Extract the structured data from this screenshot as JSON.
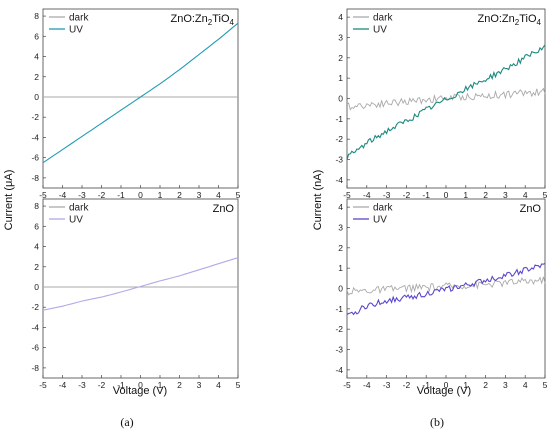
{
  "figure": {
    "label_a": "(a)",
    "label_b": "(b)",
    "ylabel_a": "Current (μA)",
    "ylabel_b": "Current (nA)",
    "xlabel": "Voltage (V)",
    "legend_dark": "dark",
    "legend_uv": "UV",
    "title_top_prefix": "ZnO:Zn",
    "title_top_sub1": "2",
    "title_top_mid": "TiO",
    "title_top_sub2": "4",
    "title_bottom": "ZnO"
  },
  "colors": {
    "dark": "#aaaaaa",
    "uv_znzn": "#1f9bb3",
    "uv_zno_a": "#b5a8e8",
    "uv_znzn_b": "#1c8a80",
    "uv_zno_b": "#5a48cc",
    "frame": "#444444"
  },
  "chart_data": [
    {
      "id": "a-top",
      "type": "line",
      "panel": "(a)",
      "title": "ZnO:Zn2TiO4",
      "xlabel": "Voltage (V)",
      "ylabel": "Current (μA)",
      "xlim": [
        -5,
        5
      ],
      "ylim": [
        -9,
        8.7
      ],
      "xticks": [
        -5,
        -4,
        -3,
        -2,
        -1,
        0,
        1,
        2,
        3,
        4,
        5
      ],
      "yticks": [
        -8,
        -6,
        -4,
        -2,
        0,
        2,
        4,
        6,
        8
      ],
      "legend": "top-left",
      "grid": false,
      "series": [
        {
          "name": "dark",
          "x": [
            -5,
            5
          ],
          "y": [
            0,
            0
          ]
        },
        {
          "name": "UV",
          "x": [
            -5,
            -4,
            -3,
            -2,
            -1,
            0,
            1,
            2,
            3,
            4,
            5
          ],
          "y": [
            -6.5,
            -5.2,
            -3.9,
            -2.6,
            -1.3,
            0,
            1.3,
            2.7,
            4.2,
            5.7,
            7.3
          ]
        }
      ]
    },
    {
      "id": "a-bottom",
      "type": "line",
      "panel": "(a)",
      "title": "ZnO",
      "xlabel": "Voltage (V)",
      "ylabel": "Current (μA)",
      "xlim": [
        -5,
        5
      ],
      "ylim": [
        -9,
        8.7
      ],
      "xticks": [
        -5,
        -4,
        -3,
        -2,
        -1,
        0,
        1,
        2,
        3,
        4,
        5
      ],
      "yticks": [
        -8,
        -6,
        -4,
        -2,
        0,
        2,
        4,
        6,
        8
      ],
      "legend": "top-left",
      "grid": false,
      "series": [
        {
          "name": "dark",
          "x": [
            -5,
            5
          ],
          "y": [
            0,
            0
          ]
        },
        {
          "name": "UV",
          "x": [
            -5,
            -4,
            -3,
            -2,
            -1,
            0,
            1,
            2,
            3,
            4,
            5
          ],
          "y": [
            -2.3,
            -1.9,
            -1.4,
            -1.0,
            -0.5,
            0.05,
            0.6,
            1.1,
            1.7,
            2.3,
            2.9
          ]
        }
      ]
    },
    {
      "id": "b-top",
      "type": "line",
      "panel": "(b)",
      "title": "ZnO:Zn2TiO4",
      "xlabel": "Voltage (V)",
      "ylabel": "Current (nA)",
      "xlim": [
        -5,
        5
      ],
      "ylim": [
        -4.4,
        4.4
      ],
      "xticks": [
        -5,
        -4,
        -3,
        -2,
        -1,
        0,
        1,
        2,
        3,
        4,
        5
      ],
      "yticks": [
        -4,
        -3,
        -2,
        -1,
        0,
        1,
        2,
        3,
        4
      ],
      "legend": "top-left",
      "grid": false,
      "series": [
        {
          "name": "dark",
          "x": [
            -5,
            -4,
            -3,
            -2,
            -1,
            0,
            1,
            2,
            3,
            4,
            5
          ],
          "y": [
            -0.4,
            -0.3,
            -0.22,
            -0.15,
            -0.05,
            0.02,
            0.08,
            0.13,
            0.2,
            0.28,
            0.32
          ]
        },
        {
          "name": "UV",
          "x": [
            -5,
            -4,
            -3,
            -2,
            -1,
            0,
            1,
            2,
            3,
            4,
            5
          ],
          "y": [
            -2.9,
            -2.2,
            -1.6,
            -1.1,
            -0.55,
            -0.05,
            0.45,
            0.95,
            1.45,
            2.0,
            2.5
          ]
        }
      ]
    },
    {
      "id": "b-bottom",
      "type": "line",
      "panel": "(b)",
      "title": "ZnO",
      "xlabel": "Voltage (V)",
      "ylabel": "Current (nA)",
      "xlim": [
        -5,
        5
      ],
      "ylim": [
        -4.4,
        4.4
      ],
      "xticks": [
        -5,
        -4,
        -3,
        -2,
        -1,
        0,
        1,
        2,
        3,
        4,
        5
      ],
      "yticks": [
        -4,
        -3,
        -2,
        -1,
        0,
        1,
        2,
        3,
        4
      ],
      "legend": "top-left",
      "grid": false,
      "series": [
        {
          "name": "dark",
          "x": [
            -5,
            -4,
            -3,
            -2,
            -1,
            0,
            1,
            2,
            3,
            4,
            5
          ],
          "y": [
            -0.15,
            -0.1,
            -0.05,
            0.02,
            0.05,
            0.1,
            0.15,
            0.2,
            0.28,
            0.35,
            0.42
          ]
        },
        {
          "name": "UV",
          "x": [
            -5,
            -4,
            -3,
            -2,
            -1,
            0,
            1,
            2,
            3,
            4,
            5
          ],
          "y": [
            -1.4,
            -0.85,
            -0.6,
            -0.45,
            -0.25,
            -0.05,
            0.15,
            0.4,
            0.65,
            0.9,
            1.15
          ]
        }
      ]
    }
  ]
}
